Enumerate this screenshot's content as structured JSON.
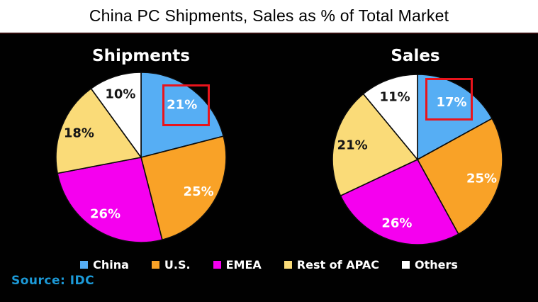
{
  "page_title": "China PC Shipments, Sales as % of Total Market",
  "source_note": "Source: IDC",
  "colors": {
    "header_background": "#FFFFFF",
    "panel_background": "#010101",
    "title_text": "#000000",
    "legend_text": "#FFFFFF",
    "highlight_box": "#E8141C",
    "source_text": "#1C9AD8"
  },
  "legend": {
    "position": "bottom",
    "items": [
      {
        "label": "China",
        "color": "#56AEF4"
      },
      {
        "label": "U.S.",
        "color": "#F9A227"
      },
      {
        "label": "EMEA",
        "color": "#F500EF"
      },
      {
        "label": "Rest of APAC",
        "color": "#FADB78"
      },
      {
        "label": "Others",
        "color": "#FFFFFF"
      }
    ]
  },
  "chart_data": [
    {
      "type": "pie",
      "title": "Shipments",
      "categories": [
        "China",
        "U.S.",
        "EMEA",
        "Rest of APAC",
        "Others"
      ],
      "values": [
        21,
        25,
        26,
        18,
        10
      ],
      "labels": [
        "21%",
        "25%",
        "26%",
        "18%",
        "10%"
      ],
      "label_colors": [
        "#FFFFFF",
        "#FFFFFF",
        "#FFFFFF",
        "#161616",
        "#161616"
      ],
      "slice_colors": [
        "#56AEF4",
        "#F9A227",
        "#F500EF",
        "#FADB78",
        "#FFFFFF"
      ],
      "start_angle_deg": 0,
      "direction": "clockwise",
      "highlighted_slice": "China 21%"
    },
    {
      "type": "pie",
      "title": "Sales",
      "categories": [
        "China",
        "U.S.",
        "EMEA",
        "Rest of APAC",
        "Others"
      ],
      "values": [
        17,
        25,
        26,
        21,
        11
      ],
      "labels": [
        "17%",
        "25%",
        "26%",
        "21%",
        "11%"
      ],
      "label_colors": [
        "#FFFFFF",
        "#FFFFFF",
        "#FFFFFF",
        "#161616",
        "#161616"
      ],
      "slice_colors": [
        "#56AEF4",
        "#F9A227",
        "#F500EF",
        "#FADB78",
        "#FFFFFF"
      ],
      "start_angle_deg": 0,
      "direction": "clockwise",
      "highlighted_slice": "China 17%"
    }
  ]
}
